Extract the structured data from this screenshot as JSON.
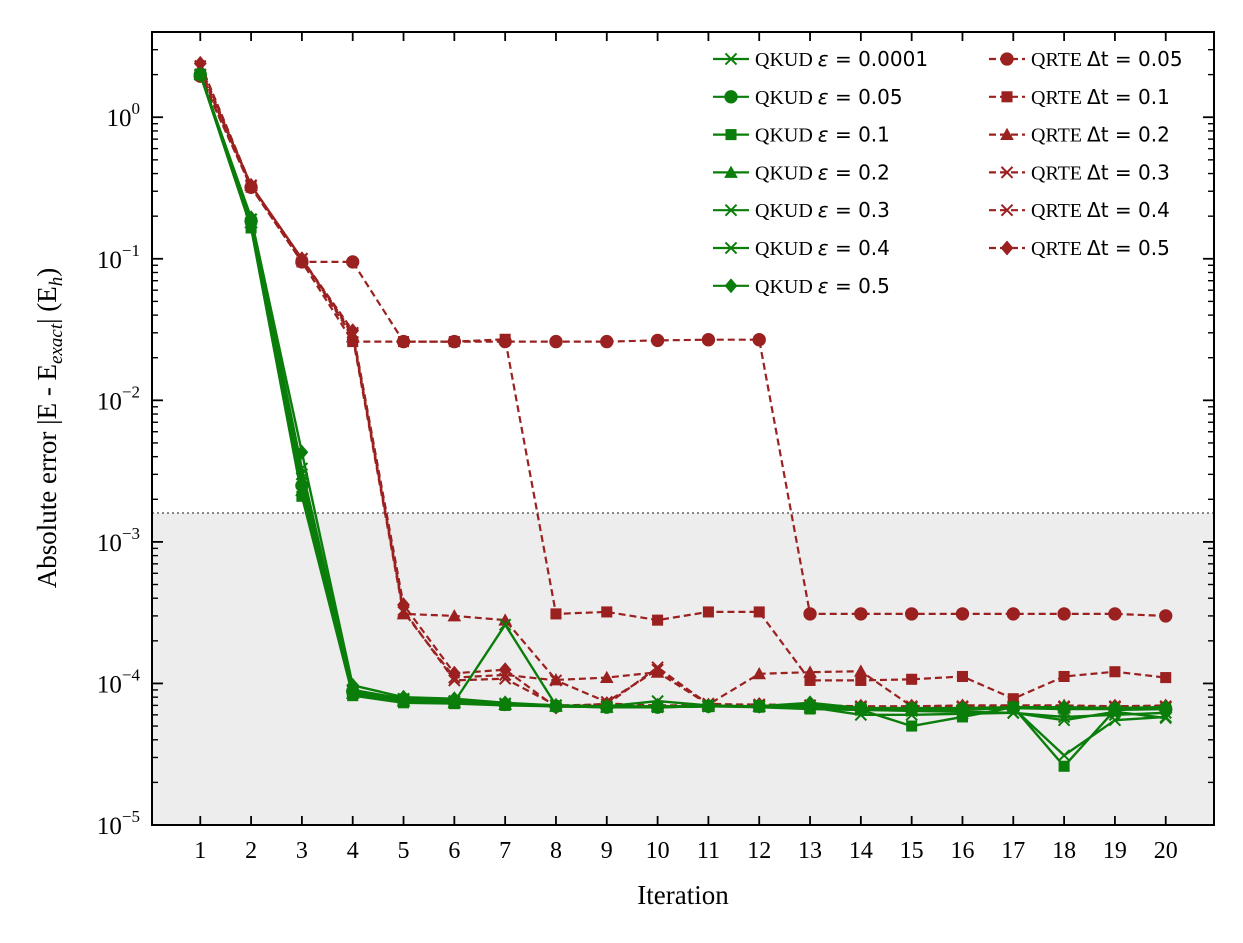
{
  "chart_data": {
    "type": "line",
    "title": "",
    "xlabel": "Iteration",
    "ylabel_parts": {
      "prefix": "Absolute error |E - E",
      "subscript": "exact",
      "middle": "| (E",
      "unit_subscript": "h",
      "suffix": ")"
    },
    "y_scale": "log",
    "ylim": [
      1e-05,
      4.0
    ],
    "xlim": [
      0.05,
      20.95
    ],
    "x_ticks": [
      1,
      2,
      3,
      4,
      5,
      6,
      7,
      8,
      9,
      10,
      11,
      12,
      13,
      14,
      15,
      16,
      17,
      18,
      19,
      20
    ],
    "y_ticks": [
      {
        "value": 1,
        "base": "10",
        "exp": "0"
      },
      {
        "value": 0.1,
        "base": "10",
        "exp": "−1"
      },
      {
        "value": 0.01,
        "base": "10",
        "exp": "−2"
      },
      {
        "value": 0.001,
        "base": "10",
        "exp": "−3"
      },
      {
        "value": 0.0001,
        "base": "10",
        "exp": "−4"
      },
      {
        "value": 1e-05,
        "base": "10",
        "exp": "−5"
      }
    ],
    "chemical_accuracy_threshold": 0.0016,
    "shaded_region": [
      1e-05,
      0.0016
    ],
    "grid": false,
    "legend_position": "top-right",
    "colors": {
      "qkud": "#0a7d0a",
      "qrte": "#9b2020",
      "threshold": "#888888",
      "shade": "#ededed",
      "axis": "#000000"
    },
    "series": [
      {
        "group": "QKUD",
        "name": "QKUD",
        "param": "ε",
        "param_value": "0.0001",
        "marker": "x",
        "dashed": false,
        "values": [
          2.0,
          0.19,
          0.0028,
          9e-05,
          7.8e-05,
          7.5e-05,
          7.2e-05,
          7e-05,
          6.8e-05,
          6.8e-05,
          6.9e-05,
          6.9e-05,
          6.7e-05,
          6.5e-05,
          6.4e-05,
          6.3e-05,
          6.2e-05,
          5.8e-05,
          6e-05,
          6.2e-05
        ]
      },
      {
        "group": "QKUD",
        "name": "QKUD",
        "param": "ε",
        "param_value": "0.05",
        "marker": "circle",
        "dashed": false,
        "values": [
          2.0,
          0.185,
          0.0025,
          8.8e-05,
          7.7e-05,
          7.4e-05,
          7.1e-05,
          6.9e-05,
          6.8e-05,
          6.8e-05,
          6.9e-05,
          6.9e-05,
          6.8e-05,
          6.7e-05,
          6.6e-05,
          6.6e-05,
          6.7e-05,
          6.6e-05,
          6.6e-05,
          6.6e-05
        ]
      },
      {
        "group": "QKUD",
        "name": "QKUD",
        "param": "ε",
        "param_value": "0.1",
        "marker": "square",
        "dashed": false,
        "values": [
          2.0,
          0.165,
          0.0021,
          8.2e-05,
          7.3e-05,
          7.2e-05,
          7e-05,
          6.9e-05,
          6.8e-05,
          6.8e-05,
          6.9e-05,
          6.8e-05,
          6.6e-05,
          6.5e-05,
          5e-05,
          5.8e-05,
          6.8e-05,
          2.6e-05,
          6.5e-05,
          6.6e-05
        ]
      },
      {
        "group": "QKUD",
        "name": "QKUD",
        "param": "ε",
        "param_value": "0.2",
        "marker": "triangle",
        "dashed": false,
        "values": [
          2.0,
          0.18,
          0.0023,
          8.5e-05,
          7.5e-05,
          7.3e-05,
          7.1e-05,
          6.9e-05,
          6.8e-05,
          6.9e-05,
          6.9e-05,
          6.9e-05,
          7.1e-05,
          6.6e-05,
          6.6e-05,
          6.7e-05,
          6.7e-05,
          6.7e-05,
          6.7e-05,
          6.8e-05
        ]
      },
      {
        "group": "QKUD",
        "name": "QKUD",
        "param": "ε",
        "param_value": "0.3",
        "marker": "x",
        "dashed": false,
        "values": [
          2.0,
          0.19,
          0.003,
          8.8e-05,
          7.6e-05,
          7.4e-05,
          0.00026,
          7e-05,
          6.9e-05,
          7.5e-05,
          7e-05,
          6.9e-05,
          6.8e-05,
          6e-05,
          6e-05,
          6.1e-05,
          6.2e-05,
          5.5e-05,
          6.3e-05,
          5.7e-05
        ]
      },
      {
        "group": "QKUD",
        "name": "QKUD",
        "param": "ε",
        "param_value": "0.4",
        "marker": "x",
        "dashed": false,
        "values": [
          2.0,
          0.19,
          0.0033,
          9e-05,
          7.7e-05,
          7.5e-05,
          7.2e-05,
          7e-05,
          6.8e-05,
          6.8e-05,
          6.9e-05,
          6.9e-05,
          6.8e-05,
          6.6e-05,
          6.6e-05,
          6.5e-05,
          6.7e-05,
          3.1e-05,
          5.5e-05,
          5.8e-05
        ]
      },
      {
        "group": "QKUD",
        "name": "QKUD",
        "param": "ε",
        "param_value": "0.5",
        "marker": "diamond",
        "dashed": false,
        "values": [
          2.0,
          0.195,
          0.0043,
          9.7e-05,
          8e-05,
          7.8e-05,
          7.3e-05,
          7e-05,
          6.9e-05,
          6.9e-05,
          6.9e-05,
          6.9e-05,
          7.3e-05,
          6.7e-05,
          6.7e-05,
          6.7e-05,
          6.8e-05,
          6.8e-05,
          6.7e-05,
          6.8e-05
        ]
      },
      {
        "group": "QRTE",
        "name": "QRTE",
        "param": "Δt",
        "param_value": "0.05",
        "marker": "circle",
        "dashed": true,
        "values": [
          1.95,
          0.32,
          0.095,
          0.095,
          0.026,
          0.026,
          0.026,
          0.026,
          0.026,
          0.0265,
          0.0268,
          0.0268,
          0.00031,
          0.00031,
          0.00031,
          0.00031,
          0.00031,
          0.00031,
          0.00031,
          0.0003
        ]
      },
      {
        "group": "QRTE",
        "name": "QRTE",
        "param": "Δt",
        "param_value": "0.1",
        "marker": "square",
        "dashed": true,
        "values": [
          2.0,
          0.32,
          0.095,
          0.026,
          0.026,
          0.026,
          0.027,
          0.00031,
          0.00032,
          0.00028,
          0.00032,
          0.00032,
          0.000105,
          0.000105,
          0.000107,
          0.000112,
          7.8e-05,
          0.000112,
          0.000121,
          0.00011
        ]
      },
      {
        "group": "QRTE",
        "name": "QRTE",
        "param": "Δt",
        "param_value": "0.2",
        "marker": "triangle",
        "dashed": true,
        "values": [
          2.1,
          0.33,
          0.1,
          0.028,
          0.00031,
          0.0003,
          0.00028,
          0.000106,
          0.00011,
          0.00012,
          7.1e-05,
          0.000117,
          0.00012,
          0.000122,
          6.9e-05,
          7e-05,
          7e-05,
          7e-05,
          6.9e-05,
          7e-05
        ]
      },
      {
        "group": "QRTE",
        "name": "QRTE",
        "param": "Δt",
        "param_value": "0.3",
        "marker": "x",
        "dashed": true,
        "values": [
          2.2,
          0.33,
          0.1,
          0.029,
          0.00032,
          0.00011,
          0.000115,
          0.000105,
          7.4e-05,
          0.000125,
          7.2e-05,
          7e-05,
          7e-05,
          6.8e-05,
          6.8e-05,
          6.8e-05,
          6.8e-05,
          6.8e-05,
          6.8e-05,
          6.8e-05
        ]
      },
      {
        "group": "QRTE",
        "name": "QRTE",
        "param": "Δt",
        "param_value": "0.4",
        "marker": "x",
        "dashed": true,
        "values": [
          2.3,
          0.33,
          0.1,
          0.03,
          0.00033,
          0.000105,
          0.000108,
          7e-05,
          7.1e-05,
          0.00013,
          7.1e-05,
          7.1e-05,
          7e-05,
          6.9e-05,
          6.9e-05,
          6.9e-05,
          6.9e-05,
          6.9e-05,
          6.9e-05,
          6.9e-05
        ]
      },
      {
        "group": "QRTE",
        "name": "QRTE",
        "param": "Δt",
        "param_value": "0.5",
        "marker": "diamond",
        "dashed": true,
        "values": [
          2.4,
          0.33,
          0.1,
          0.031,
          0.00036,
          0.000118,
          0.000125,
          6.8e-05,
          7.2e-05,
          7e-05,
          7e-05,
          7.1e-05,
          7e-05,
          6.9e-05,
          6.9e-05,
          6.9e-05,
          6.8e-05,
          6.8e-05,
          6.9e-05,
          6.9e-05
        ]
      }
    ]
  }
}
